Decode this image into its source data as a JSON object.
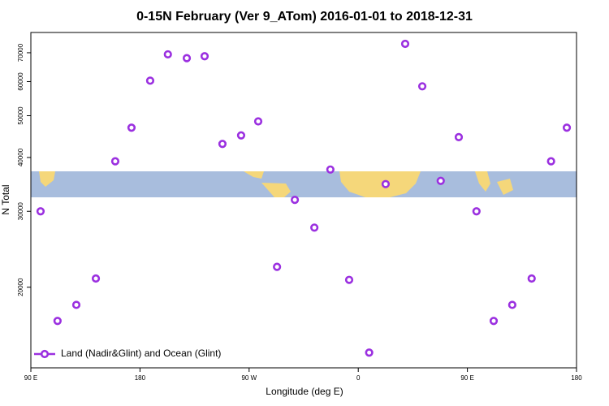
{
  "chart_data": {
    "type": "scatter",
    "title": "0-15N February (Ver 9_ATom)   2016-01-01 to 2018-12-31",
    "x_label": "Longitude (deg E)",
    "y_label": "N Total",
    "xlim": [
      90,
      540
    ],
    "ylim": [
      13000,
      78000
    ],
    "y_log": true,
    "xticks": [
      {
        "value": 90,
        "label": "90 E"
      },
      {
        "value": 180,
        "label": "180"
      },
      {
        "value": 270,
        "label": "90 W"
      },
      {
        "value": 360,
        "label": "0"
      },
      {
        "value": 450,
        "label": "90 E"
      },
      {
        "value": 540,
        "label": "180"
      }
    ],
    "yticks": [
      20000,
      30000,
      40000,
      50000,
      60000,
      70000
    ],
    "legend_position": "lower left",
    "series": [
      {
        "name": "Land (Nadir&Glint) and Ocean (Glint)",
        "color": "#9b30e0",
        "x": [
          98,
          112,
          127.5,
          143.6,
          159.6,
          173,
          188.4,
          203,
          218.6,
          233.3,
          248,
          263.4,
          277.5,
          293,
          307.7,
          323.8,
          337,
          352.5,
          369,
          382.6,
          398.7,
          412.8,
          428,
          442.9,
          457.5,
          471.7,
          487,
          503,
          519,
          532
        ],
        "values": [
          30000,
          16700,
          18200,
          20950,
          39200,
          46900,
          60300,
          69400,
          68000,
          68700,
          43000,
          45000,
          48500,
          22300,
          31900,
          27500,
          37500,
          20800,
          14100,
          34700,
          73400,
          58500,
          35300,
          44600,
          30000,
          16700,
          18200,
          20950,
          39200,
          46900
        ]
      }
    ]
  }
}
